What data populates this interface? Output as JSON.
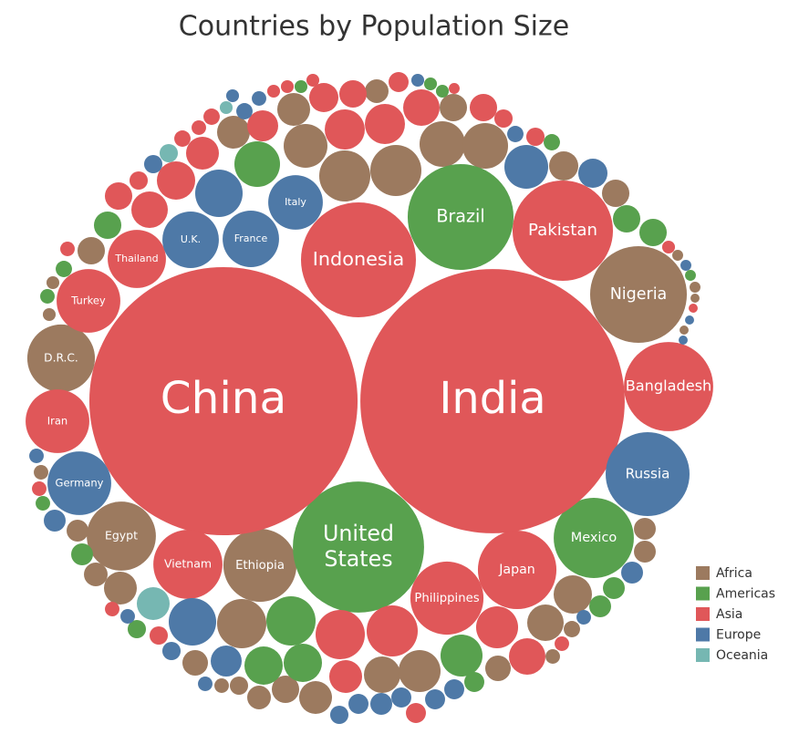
{
  "chart_data": {
    "type": "bubble",
    "title": "Countries by Population Size",
    "series": [
      {
        "name": "Africa",
        "color": "#9c7a5f",
        "categories": [
          "Nigeria",
          "Ethiopia",
          "Egypt",
          "D.R.C.",
          null,
          null,
          null,
          null,
          null,
          null,
          null,
          null,
          null,
          null,
          null,
          null,
          null,
          null,
          null,
          null,
          null,
          null,
          null,
          null,
          null,
          null,
          null,
          null,
          null,
          null,
          null,
          null,
          null,
          null,
          null,
          null,
          null,
          null,
          null,
          null,
          null,
          null
        ],
        "values": [
          182,
          104,
          93,
          89,
          10.9,
          14.6,
          21,
          21,
          37.3,
          50.8,
          50.8,
          40.5,
          40.5,
          16.6,
          14.6,
          14.6,
          3.2,
          3.2,
          2.3,
          2.3,
          1.6,
          1.6,
          4.1,
          9.3,
          10.9,
          21,
          47.2,
          12.7,
          4.1,
          6.5,
          10.9,
          14.6,
          21,
          25.9,
          34.3,
          12.7,
          25.9,
          28.6,
          9.3,
          9.3,
          5.2,
          4.1
        ]
      },
      {
        "name": "Americas",
        "color": "#58a14e",
        "categories": [
          "United States",
          "Brazil",
          "Mexico",
          null,
          null,
          null,
          null,
          null,
          null,
          null,
          null,
          null,
          null,
          null,
          null,
          null,
          null,
          null,
          null,
          null,
          null,
          null,
          null,
          null
        ],
        "values": [
          335,
          218,
          125,
          3.2,
          3.2,
          3.2,
          5.2,
          40.5,
          14.6,
          5.2,
          4.1,
          14.6,
          14.6,
          2.3,
          4.1,
          9.3,
          6.5,
          47.2,
          28.6,
          28.6,
          34.3,
          7.8,
          9.3,
          9.3
        ]
      },
      {
        "name": "Asia",
        "color": "#e05759",
        "categories": [
          "China",
          "India",
          "Indonesia",
          "Pakistan",
          "Bangladesh",
          "Japan",
          "Philippines",
          "Vietnam",
          "Iran",
          "Turkey",
          "Thailand",
          null,
          null,
          null,
          null,
          null,
          null,
          null,
          null,
          null,
          null,
          null,
          null,
          null,
          null,
          null,
          null,
          null,
          null,
          null,
          null,
          null,
          null,
          null,
          null,
          null,
          null,
          null,
          null,
          null,
          null,
          null,
          null,
          null,
          null,
          null
        ],
        "values": [
          1400,
          1360,
          257,
          196,
          155,
          120,
          104,
          93,
          79,
          79,
          66,
          3.2,
          3.2,
          3.2,
          16.6,
          14.6,
          7.8,
          2.3,
          25.9,
          14.6,
          6.5,
          6.5,
          18.7,
          5.2,
          4.1,
          5.2,
          21,
          31.3,
          31.3,
          28.6,
          6.5,
          14.6,
          25.9,
          4.1,
          3.2,
          1.6,
          4.1,
          4.1,
          6.5,
          47.2,
          50.8,
          21,
          34.3,
          25.9,
          7.8,
          4.1
        ]
      },
      {
        "name": "Europe",
        "color": "#4e79a7",
        "categories": [
          "Russia",
          "Germany",
          "U.K.",
          "France",
          "Italy",
          null,
          null,
          null,
          null,
          null,
          null,
          null,
          null,
          null,
          null,
          null,
          null,
          null,
          null,
          null,
          null,
          null,
          null,
          null,
          null,
          null,
          null,
          null,
          null,
          null,
          null,
          null
        ],
        "values": [
          137,
          79,
          62,
          62,
          58,
          3.2,
          5.2,
          4.1,
          3.2,
          5.2,
          6.5,
          43.8,
          37.3,
          16.6,
          2.3,
          1.6,
          1.6,
          4.1,
          9.3,
          4.1,
          43.8,
          6.5,
          18.7,
          4.1,
          7.8,
          7.8,
          7.8,
          9.3,
          7.8,
          6.5,
          9.3,
          4.1
        ]
      },
      {
        "name": "Oceania",
        "color": "#76b7b2",
        "categories": [
          null,
          null,
          null
        ],
        "values": [
          3.2,
          6.5,
          21
        ]
      }
    ]
  }
}
